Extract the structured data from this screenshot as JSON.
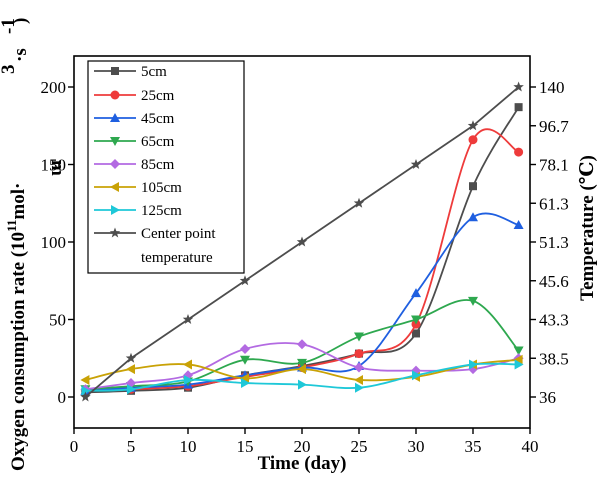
{
  "chart_data": {
    "type": "line",
    "xlabel": "Time (day)",
    "ylabel_left_parts": [
      "Oxygen consumption rate (10",
      "11",
      "mol·",
      "3",
      "·s",
      "-1",
      ")"
    ],
    "ylabel_left_fragment": "m",
    "ylabel_right": "Temperature (℃)",
    "xlim": [
      0,
      40
    ],
    "ylim": [
      -20,
      220
    ],
    "x_ticks": [
      "0",
      "5",
      "10",
      "15",
      "20",
      "25",
      "30",
      "35",
      "40"
    ],
    "y_ticks_left": [
      "0",
      "50",
      "100",
      "150",
      "200"
    ],
    "y_ticks_right": [
      "36",
      "38.5",
      "43.3",
      "45.6",
      "51.3",
      "61.3",
      "78.1",
      "96.7",
      "140"
    ],
    "y_ticks_right_positions": [
      0,
      25,
      50,
      75,
      100,
      125,
      150,
      175,
      200
    ],
    "legend_position": "top-left",
    "series": [
      {
        "name": "5cm",
        "color": "#4d4d4d",
        "marker": "square",
        "x": [
          1,
          5,
          10,
          15,
          20,
          25,
          30,
          35,
          39
        ],
        "y": [
          3,
          4,
          6,
          14,
          20,
          28,
          41,
          136,
          187
        ]
      },
      {
        "name": "25cm",
        "color": "#ee3b3b",
        "marker": "circle",
        "x": [
          1,
          5,
          10,
          15,
          20,
          25,
          30,
          35,
          39
        ],
        "y": [
          4,
          5,
          7,
          13,
          19,
          28,
          47,
          166,
          158
        ]
      },
      {
        "name": "45cm",
        "color": "#1f5fe0",
        "marker": "triangle-up",
        "x": [
          1,
          5,
          10,
          15,
          20,
          25,
          30,
          35,
          39
        ],
        "y": [
          4,
          6,
          8,
          14,
          19,
          20,
          67,
          116,
          111
        ]
      },
      {
        "name": "65cm",
        "color": "#2ea84f",
        "marker": "triangle-down",
        "x": [
          1,
          5,
          10,
          15,
          20,
          25,
          30,
          35,
          39
        ],
        "y": [
          5,
          7,
          10,
          24,
          22,
          39,
          50,
          62,
          30
        ]
      },
      {
        "name": "85cm",
        "color": "#b36ae2",
        "marker": "diamond",
        "x": [
          1,
          5,
          10,
          15,
          20,
          25,
          30,
          35,
          39
        ],
        "y": [
          5,
          9,
          14,
          31,
          34,
          19,
          17,
          18,
          25
        ]
      },
      {
        "name": "105cm",
        "color": "#c9a206",
        "marker": "triangle-left",
        "x": [
          1,
          5,
          10,
          15,
          20,
          25,
          30,
          35,
          39
        ],
        "y": [
          11,
          18,
          21,
          12,
          18,
          11,
          13,
          21,
          24
        ]
      },
      {
        "name": "125cm",
        "color": "#1ec8d8",
        "marker": "triangle-right",
        "x": [
          1,
          5,
          10,
          15,
          20,
          25,
          30,
          35,
          39
        ],
        "y": [
          4,
          5,
          11,
          9,
          8,
          6,
          14,
          21,
          21
        ]
      },
      {
        "name": "Center point temperature",
        "name_lines": [
          "Center point",
          "temperature"
        ],
        "color": "#4d4d4d",
        "marker": "star",
        "x": [
          1,
          5,
          10,
          15,
          20,
          25,
          30,
          35,
          39
        ],
        "y": [
          0,
          25,
          50,
          75,
          100,
          125,
          150,
          175,
          200
        ]
      }
    ]
  }
}
